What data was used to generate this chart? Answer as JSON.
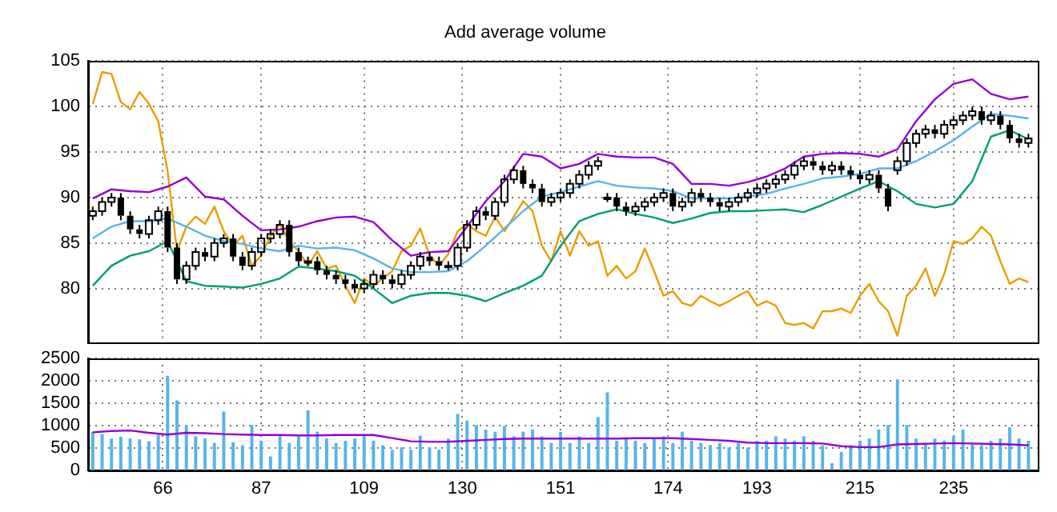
{
  "chart_data": [
    {
      "type": "candlestick",
      "title": "Add average volume",
      "color": "#000000",
      "x": [
        51,
        53,
        55,
        57,
        59,
        61,
        63,
        65,
        67,
        69,
        71,
        73,
        75,
        77,
        79,
        81,
        83,
        85,
        87,
        89,
        91,
        93,
        95,
        97,
        99,
        101,
        103,
        105,
        107,
        109,
        111,
        113,
        115,
        117,
        119,
        121,
        123,
        125,
        127,
        129,
        131,
        133,
        135,
        137,
        139,
        141,
        143,
        145,
        147,
        149,
        151,
        153,
        155,
        157,
        159,
        161,
        163,
        165,
        167,
        169,
        171,
        173,
        175,
        177,
        179,
        181,
        183,
        185,
        187,
        189,
        191,
        193,
        195,
        197,
        199,
        201,
        203,
        205,
        207,
        209,
        211,
        213,
        215,
        217,
        219,
        221,
        223,
        225,
        227,
        229,
        231,
        233,
        235,
        237,
        239,
        241,
        243,
        245,
        247,
        249,
        251
      ],
      "ohlc": [
        [
          88,
          89,
          87.5,
          88.5
        ],
        [
          88.5,
          90,
          88,
          89.5
        ],
        [
          89.5,
          90.5,
          89,
          90
        ],
        [
          90,
          90.5,
          87.5,
          88
        ],
        [
          88,
          88.5,
          86,
          86.5
        ],
        [
          86.5,
          87,
          85.5,
          86
        ],
        [
          86,
          88,
          85.5,
          87.5
        ],
        [
          87.5,
          89,
          87,
          88.5
        ],
        [
          88.5,
          89,
          84,
          84.5
        ],
        [
          84.5,
          85,
          80.5,
          81
        ],
        [
          81,
          83,
          80.5,
          82.5
        ],
        [
          82.5,
          84.5,
          82,
          84
        ],
        [
          84,
          84.5,
          83,
          83.5
        ],
        [
          83.5,
          85.5,
          83,
          85
        ],
        [
          85,
          86,
          84.5,
          85.5
        ],
        [
          85.5,
          86,
          83,
          83.5
        ],
        [
          83.5,
          84,
          82,
          82.5
        ],
        [
          82.5,
          84.5,
          82,
          84
        ],
        [
          84,
          86,
          83.5,
          85.5
        ],
        [
          85.5,
          86.5,
          85,
          86
        ],
        [
          86,
          87.5,
          85.5,
          87
        ],
        [
          87,
          87.5,
          83.5,
          84
        ],
        [
          84,
          84.5,
          82.5,
          83
        ],
        [
          83,
          83.5,
          82.5,
          83
        ],
        [
          83,
          83.5,
          81.5,
          82
        ],
        [
          82,
          82.5,
          81,
          81.5
        ],
        [
          81.5,
          82,
          80.5,
          81
        ],
        [
          81,
          81.5,
          80,
          80.5
        ],
        [
          80.5,
          81,
          79.5,
          80
        ],
        [
          80,
          81,
          79.5,
          80.5
        ],
        [
          80.5,
          82,
          80,
          81.5
        ],
        [
          81.5,
          82,
          80.5,
          81
        ],
        [
          81,
          81.5,
          80,
          80.5
        ],
        [
          80.5,
          82,
          80,
          81.5
        ],
        [
          81.5,
          83,
          81,
          82.5
        ],
        [
          82.5,
          84,
          82,
          83.5
        ],
        [
          83.5,
          84,
          82.5,
          83
        ],
        [
          83,
          83.5,
          82,
          82.5
        ],
        [
          82.5,
          83,
          82,
          82.5
        ],
        [
          82.5,
          85,
          82,
          84.5
        ],
        [
          84.5,
          87.5,
          84,
          87
        ],
        [
          87,
          89,
          86.5,
          88.5
        ],
        [
          88.5,
          89,
          87.5,
          88
        ],
        [
          88,
          90,
          87.5,
          89.5
        ],
        [
          89.5,
          92.5,
          89,
          92
        ],
        [
          92,
          93.5,
          91.5,
          93
        ],
        [
          93,
          93.5,
          91,
          91.5
        ],
        [
          91.5,
          92,
          90.5,
          91
        ],
        [
          91,
          91.5,
          89,
          89.5
        ],
        [
          89.5,
          90.5,
          89,
          90
        ],
        [
          90,
          91,
          89.5,
          90.5
        ],
        [
          90.5,
          92,
          90,
          91.5
        ],
        [
          91.5,
          93,
          91,
          92.5
        ],
        [
          92.5,
          94,
          92,
          93.5
        ],
        [
          93.5,
          94.5,
          93,
          94
        ],
        [
          90,
          90.5,
          89.5,
          90
        ],
        [
          90,
          90.5,
          88.5,
          89
        ],
        [
          89,
          89.5,
          88,
          88.5
        ],
        [
          88.5,
          89.5,
          88,
          89
        ],
        [
          89,
          90,
          88.5,
          89.5
        ],
        [
          89.5,
          90.5,
          89,
          90
        ],
        [
          90,
          91,
          89.5,
          90.5
        ],
        [
          90.5,
          91,
          88.5,
          89
        ],
        [
          89,
          90,
          88.5,
          89.5
        ],
        [
          89.5,
          91,
          89,
          90.5
        ],
        [
          90.5,
          91,
          89.5,
          90
        ],
        [
          90,
          90.5,
          89,
          89.5
        ],
        [
          89.5,
          90,
          88.5,
          89
        ],
        [
          89,
          90,
          88.5,
          89.5
        ],
        [
          89.5,
          90.5,
          89,
          90
        ],
        [
          90,
          91,
          89.5,
          90.5
        ],
        [
          90.5,
          91.5,
          90,
          91
        ],
        [
          91,
          92,
          90.5,
          91.5
        ],
        [
          91.5,
          92.5,
          91,
          92
        ],
        [
          92,
          93,
          91.5,
          92.5
        ],
        [
          92.5,
          94,
          92,
          93.5
        ],
        [
          93.5,
          94.5,
          93,
          94
        ],
        [
          94,
          94.5,
          93,
          93.5
        ],
        [
          93.5,
          94,
          92.5,
          93
        ],
        [
          93,
          94,
          92.5,
          93.5
        ],
        [
          93.5,
          94,
          92.5,
          93
        ],
        [
          93,
          93.5,
          92,
          92.5
        ],
        [
          92.5,
          93,
          91.5,
          92
        ],
        [
          92,
          93,
          91.5,
          92.5
        ],
        [
          92.5,
          93,
          90.5,
          91
        ],
        [
          91,
          91.5,
          88.5,
          89
        ],
        [
          93,
          94.5,
          92.5,
          94
        ],
        [
          94,
          96.5,
          93.5,
          96
        ],
        [
          96,
          97.5,
          95.5,
          97
        ],
        [
          97,
          98,
          96.5,
          97.5
        ],
        [
          97.5,
          98,
          96.5,
          97
        ],
        [
          97,
          98.5,
          96.5,
          98
        ],
        [
          98,
          99,
          97.5,
          98.5
        ],
        [
          98.5,
          99.5,
          98,
          99
        ],
        [
          99,
          100,
          98.5,
          99.5
        ],
        [
          99.5,
          100,
          98,
          98.5
        ],
        [
          98.5,
          99.5,
          98,
          99
        ],
        [
          99,
          99.5,
          97.5,
          98
        ],
        [
          98,
          98.5,
          96,
          96.5
        ],
        [
          96.5,
          97,
          95.5,
          96
        ],
        [
          96,
          97,
          95.5,
          96.5
        ]
      ],
      "series": [
        {
          "type": "line",
          "color": "#9400d3",
          "x": [
            51,
            55,
            59,
            63,
            67,
            71,
            75,
            79,
            83,
            87,
            91,
            95,
            99,
            103,
            107,
            111,
            115,
            119,
            123,
            127,
            131,
            135,
            139,
            143,
            147,
            151,
            155,
            159,
            163,
            167,
            171,
            175,
            179,
            183,
            187,
            191,
            195,
            199,
            203,
            207,
            211,
            215,
            219,
            223,
            227,
            231,
            235,
            239,
            243,
            247,
            251
          ],
          "values": [
            89.9,
            90.9,
            90.7,
            90.6,
            91.2,
            92.2,
            90.1,
            89.8,
            88,
            86.4,
            86.5,
            86.8,
            87.4,
            87.8,
            87.9,
            87.3,
            85.3,
            83.6,
            84,
            84.1,
            86.8,
            89.6,
            91.8,
            94.8,
            94.5,
            93.2,
            93.7,
            94.8,
            94.5,
            94.4,
            94.4,
            93.7,
            91.5,
            91.5,
            91.3,
            91.7,
            92.3,
            93.2,
            94.5,
            94.8,
            94.9,
            94.8,
            94.5,
            95.3,
            98.4,
            100.8,
            102.5,
            103,
            101.4,
            100.8,
            101.1
          ]
        },
        {
          "type": "line",
          "color": "#56b4e9",
          "x": [
            51,
            55,
            59,
            63,
            67,
            71,
            75,
            79,
            83,
            87,
            91,
            95,
            99,
            103,
            107,
            111,
            115,
            119,
            123,
            127,
            131,
            135,
            139,
            143,
            147,
            151,
            155,
            159,
            163,
            167,
            171,
            175,
            179,
            183,
            187,
            191,
            195,
            199,
            203,
            207,
            211,
            215,
            219,
            223,
            227,
            231,
            235,
            239,
            243,
            247,
            251
          ],
          "values": [
            85.5,
            86.8,
            87.4,
            87.4,
            87.7,
            86.8,
            85.8,
            85.2,
            84.9,
            84.4,
            84.1,
            84.7,
            84.4,
            84.5,
            84.2,
            83.3,
            82.2,
            81.8,
            81.8,
            81.9,
            83,
            84.7,
            86.6,
            88.5,
            90.1,
            90.6,
            91.2,
            91.8,
            91.3,
            91.1,
            91,
            90.7,
            89.9,
            89.9,
            89.9,
            90.1,
            90.4,
            91,
            91.5,
            92.1,
            92.3,
            92.6,
            93.2,
            93.2,
            94,
            95.1,
            96.3,
            97.8,
            99.2,
            99,
            98.7
          ]
        },
        {
          "type": "line",
          "color": "#009e73",
          "x": [
            51,
            55,
            59,
            63,
            67,
            71,
            75,
            79,
            83,
            87,
            91,
            95,
            99,
            103,
            107,
            111,
            115,
            119,
            123,
            127,
            131,
            135,
            139,
            143,
            147,
            151,
            155,
            159,
            163,
            167,
            171,
            175,
            179,
            183,
            187,
            191,
            195,
            199,
            203,
            207,
            211,
            215,
            219,
            223,
            227,
            231,
            235,
            239,
            243,
            247,
            251
          ],
          "values": [
            80.3,
            82.5,
            83.6,
            84.1,
            85.2,
            80.8,
            80.3,
            80.2,
            80.1,
            80.5,
            81.1,
            82.4,
            82.2,
            81.9,
            81.4,
            80,
            78.4,
            79.2,
            79.5,
            79.5,
            79.2,
            78.6,
            79.5,
            80.3,
            81.4,
            84.7,
            87.4,
            88.2,
            88.7,
            88.2,
            87.8,
            87.2,
            87.7,
            88.3,
            88.5,
            88.5,
            88.6,
            88.7,
            88.4,
            89.2,
            90.1,
            91,
            91.8,
            90.7,
            89.3,
            88.9,
            89.3,
            91.8,
            96.7,
            97.4,
            96.4
          ]
        },
        {
          "type": "line",
          "color": "#e69f00",
          "values": [
            100.3,
            103.8,
            103.6,
            100.5,
            99.7,
            101.6,
            100.3,
            98.4,
            92.9,
            84.1,
            86.8,
            87.9,
            87.1,
            89,
            86.3,
            84.7,
            85.8,
            82.5,
            83.6,
            85.8,
            87.1,
            85.2,
            84.1,
            82.5,
            84.1,
            82.2,
            82.5,
            80.3,
            78.4,
            81.1,
            80.3,
            81.1,
            81.9,
            84.1,
            84.7,
            86.6,
            83.6,
            82.5,
            83.8,
            86.3,
            87.1,
            86.3,
            85.8,
            87.9,
            86.3,
            87.9,
            89.6,
            88.5,
            84.7,
            83,
            86.3,
            83.6,
            86.3,
            84.7,
            85.2,
            81.4,
            82.5,
            81.1,
            81.9,
            84.4,
            81.9,
            79.2,
            79.7,
            78.4,
            78.1,
            79.2,
            78.6,
            78.1,
            78.6,
            79.2,
            79.7,
            78.1,
            78.6,
            78.1,
            76.2,
            76,
            76.2,
            75.6,
            77.5,
            77.5,
            77.8,
            77.3,
            79.2,
            80.5,
            78.6,
            77.5,
            74.8,
            79.2,
            80.3,
            82.2,
            79.2,
            81.6,
            85.2,
            84.9,
            85.5,
            86.8,
            85.8,
            83,
            80.5,
            81.1,
            80.7
          ]
        }
      ],
      "xlim": [
        50,
        253
      ],
      "xticks": [
        66,
        87,
        109,
        130,
        151,
        174,
        193,
        215,
        235
      ],
      "ylim": [
        74,
        105
      ],
      "yticks": [
        80,
        85,
        90,
        95,
        100,
        105
      ],
      "tick_labels": "y",
      "grid": true
    },
    {
      "type": "bar",
      "x": [
        51,
        53,
        55,
        57,
        59,
        61,
        63,
        65,
        67,
        69,
        71,
        73,
        75,
        77,
        79,
        81,
        83,
        85,
        87,
        89,
        91,
        93,
        95,
        97,
        99,
        101,
        103,
        105,
        107,
        109,
        111,
        113,
        115,
        117,
        119,
        121,
        123,
        125,
        127,
        129,
        131,
        133,
        135,
        137,
        139,
        141,
        143,
        145,
        147,
        149,
        151,
        153,
        155,
        157,
        159,
        161,
        163,
        165,
        167,
        169,
        171,
        173,
        175,
        177,
        179,
        181,
        183,
        185,
        187,
        189,
        191,
        193,
        195,
        197,
        199,
        201,
        203,
        205,
        207,
        209,
        211,
        213,
        215,
        217,
        219,
        221,
        223,
        225,
        227,
        229,
        231,
        233,
        235,
        237,
        239,
        241,
        243,
        245,
        247,
        249,
        251
      ],
      "series": [
        {
          "color": "#56b4e9",
          "values": [
            850,
            800,
            700,
            740,
            700,
            680,
            640,
            780,
            2100,
            1550,
            1000,
            750,
            700,
            600,
            1300,
            620,
            550,
            1000,
            650,
            300,
            750,
            600,
            750,
            1330,
            850,
            700,
            600,
            650,
            700,
            750,
            650,
            550,
            450,
            500,
            450,
            760,
            500,
            450,
            700,
            1250,
            1100,
            1000,
            900,
            850,
            980,
            750,
            850,
            900,
            750,
            600,
            850,
            600,
            750,
            600,
            1180,
            1730,
            650,
            700,
            650,
            600,
            700,
            750,
            600,
            850,
            650,
            600,
            550,
            600,
            500,
            600,
            500,
            650,
            650,
            750,
            700,
            650,
            750,
            650,
            550,
            150,
            400,
            550,
            650,
            700,
            900,
            1000,
            2020,
            1000,
            700,
            600,
            700,
            650,
            750,
            900,
            600,
            550,
            650,
            700,
            950,
            700,
            650
          ]
        },
        {
          "type": "line",
          "color": "#9400d3",
          "x": [
            51,
            55,
            59,
            63,
            67,
            71,
            75,
            79,
            83,
            87,
            91,
            95,
            99,
            103,
            107,
            111,
            115,
            119,
            123,
            127,
            131,
            135,
            139,
            143,
            147,
            151,
            155,
            159,
            163,
            167,
            171,
            175,
            179,
            183,
            187,
            191,
            195,
            199,
            203,
            207,
            211,
            215,
            219,
            223,
            227,
            231,
            235,
            239,
            243,
            247,
            251
          ],
          "values": [
            850,
            880,
            890,
            840,
            800,
            840,
            830,
            810,
            800,
            790,
            790,
            780,
            780,
            790,
            790,
            790,
            720,
            650,
            640,
            640,
            660,
            680,
            700,
            710,
            710,
            710,
            710,
            710,
            710,
            720,
            720,
            720,
            700,
            680,
            660,
            620,
            610,
            610,
            610,
            600,
            540,
            520,
            520,
            580,
            590,
            600,
            610,
            600,
            590,
            580,
            560
          ]
        }
      ],
      "xlim": [
        50,
        253
      ],
      "xticks": [
        66,
        87,
        109,
        130,
        151,
        174,
        193,
        215,
        235
      ],
      "ylim": [
        0,
        2500
      ],
      "yticks": [
        0,
        500,
        1000,
        1500,
        2000,
        2500
      ],
      "grid": true
    }
  ]
}
